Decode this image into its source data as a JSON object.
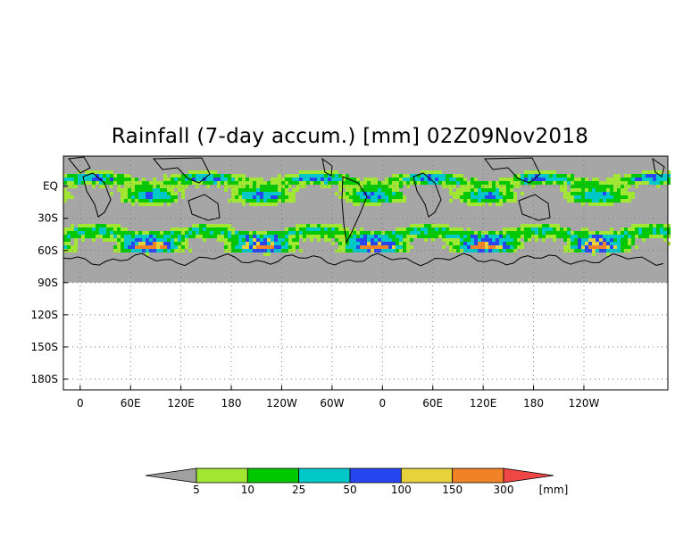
{
  "title": "Rainfall (7-day accum.) [mm] 02Z09Nov2018",
  "chart_data": {
    "type": "heatmap",
    "title": "Rainfall (7-day accum.) [mm] 02Z09Nov2018",
    "xlabel": "",
    "ylabel": "",
    "x_ticks": [
      "0",
      "60E",
      "120E",
      "180",
      "120W",
      "60W",
      "0",
      "60E",
      "120E",
      "180",
      "120W"
    ],
    "y_ticks": [
      "EQ",
      "30S",
      "60S",
      "90S",
      "120S",
      "150S",
      "180S"
    ],
    "xlim": [
      -20,
      700
    ],
    "ylim": [
      -190,
      28
    ],
    "grid": true,
    "colorbar": {
      "unit": "[mm]",
      "labels": [
        "5",
        "10",
        "25",
        "50",
        "100",
        "150",
        "300"
      ],
      "colors": [
        "#a0a0a0",
        "#a0e632",
        "#00c800",
        "#00c8c8",
        "#2846f0",
        "#e6d23c",
        "#f08228",
        "#f04646"
      ]
    },
    "land_color": "#a6a6a6",
    "coast_color": "#000000"
  }
}
